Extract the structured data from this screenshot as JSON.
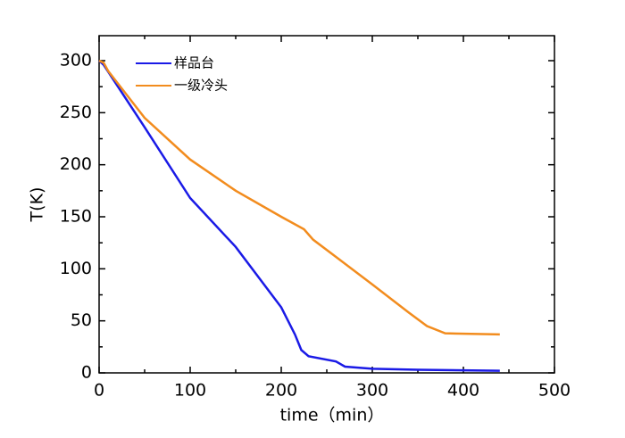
{
  "chart_data": {
    "type": "line",
    "xlabel": "time（min）",
    "ylabel": "T(K)",
    "xlim": [
      0,
      500
    ],
    "ylim": [
      0,
      324
    ],
    "xticks": [
      0,
      100,
      200,
      300,
      400,
      500
    ],
    "yticks": [
      0,
      50,
      100,
      150,
      200,
      250,
      300
    ],
    "legend": "upper left",
    "series": [
      {
        "name": "样品台",
        "color": "#1a1ae6",
        "x": [
          0,
          5,
          50,
          100,
          150,
          200,
          215,
          222,
          230,
          260,
          270,
          300,
          350,
          440
        ],
        "values": [
          300,
          296,
          236,
          168,
          121,
          63,
          37,
          22,
          16,
          11,
          6,
          4,
          3,
          2
        ]
      },
      {
        "name": "一级冷头",
        "color": "#f28c1e",
        "x": [
          0,
          5,
          10,
          50,
          100,
          150,
          200,
          225,
          235,
          300,
          340,
          360,
          380,
          440
        ],
        "values": [
          300,
          298,
          290,
          245,
          205,
          175,
          150,
          138,
          128,
          85,
          58,
          45,
          38,
          37
        ]
      }
    ]
  }
}
